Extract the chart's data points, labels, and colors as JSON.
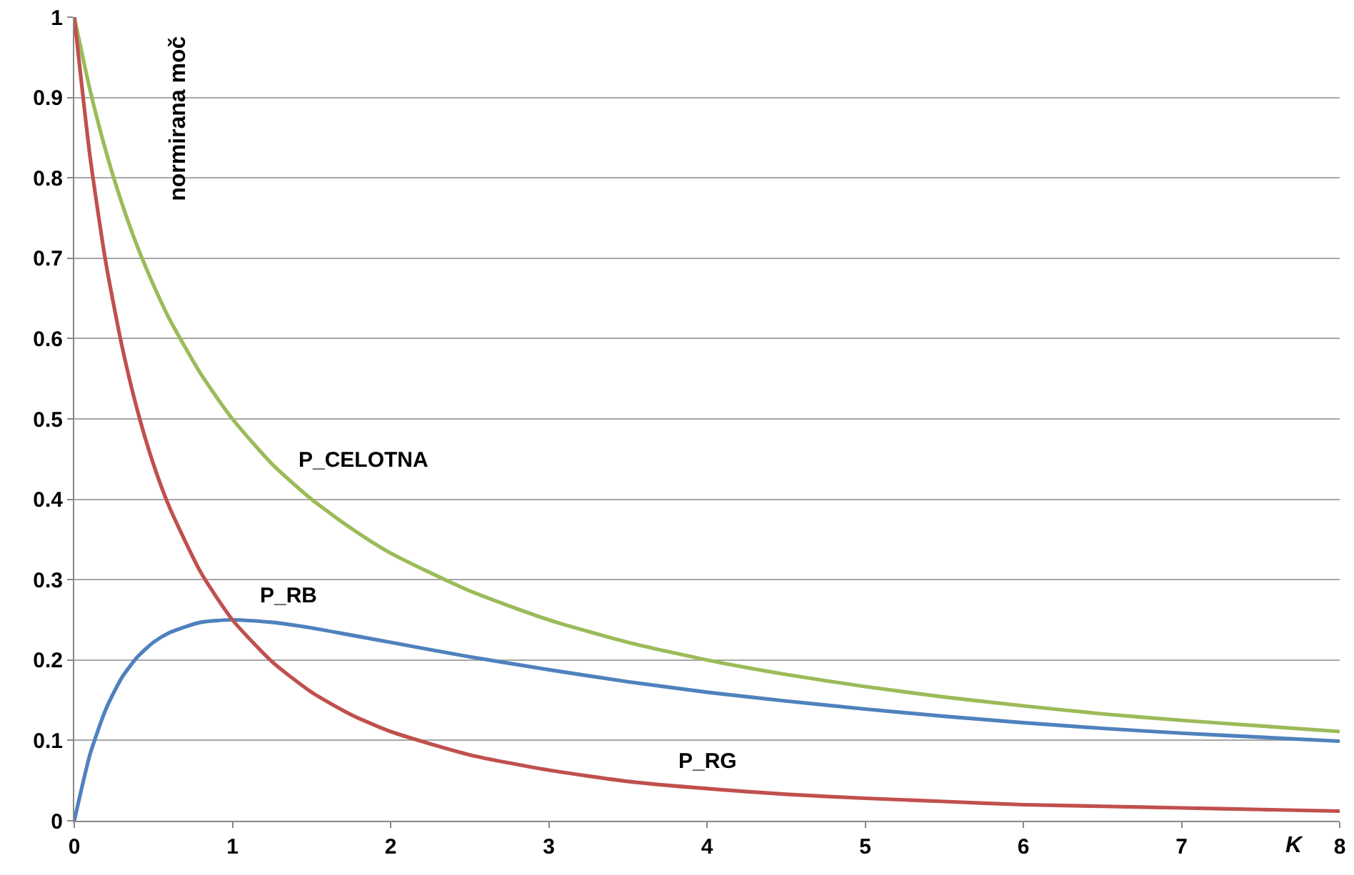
{
  "chart_data": {
    "type": "line",
    "ylabel": "normirana moč",
    "xlabel": "K",
    "x": [
      0,
      0.1,
      0.2,
      0.3,
      0.4,
      0.5,
      0.6,
      0.8,
      1,
      1.25,
      1.5,
      1.75,
      2,
      2.5,
      3,
      3.5,
      4,
      4.5,
      5,
      5.5,
      6,
      6.5,
      7,
      7.5,
      8
    ],
    "series": [
      {
        "color": "#9bbb59",
        "values": [
          1,
          0.909,
          0.833,
          0.769,
          0.714,
          0.667,
          0.625,
          0.556,
          0.5,
          0.444,
          0.4,
          0.364,
          0.333,
          0.286,
          0.25,
          0.222,
          0.2,
          0.182,
          0.167,
          0.154,
          0.143,
          0.133,
          0.125,
          0.118,
          0.111
        ]
      },
      {
        "color": "#4f81bd",
        "values": [
          0,
          0.083,
          0.139,
          0.178,
          0.204,
          0.222,
          0.234,
          0.247,
          0.25,
          0.247,
          0.24,
          0.231,
          0.222,
          0.204,
          0.188,
          0.173,
          0.16,
          0.149,
          0.139,
          0.13,
          0.122,
          0.115,
          0.109,
          0.104,
          0.099
        ]
      },
      {
        "color": "#c0504d",
        "values": [
          1,
          0.826,
          0.694,
          0.592,
          0.51,
          0.444,
          0.391,
          0.309,
          0.25,
          0.198,
          0.16,
          0.132,
          0.111,
          0.082,
          0.063,
          0.049,
          0.04,
          0.033,
          0.028,
          0.024,
          0.02,
          0.018,
          0.016,
          0.014,
          0.012
        ]
      }
    ],
    "annotations": [
      {
        "text": "P_CELOTNA",
        "x": 1.4,
        "y": 0.417
      },
      {
        "text": "P_RB",
        "x": 1.16,
        "y": 0.248
      },
      {
        "text": "P_RG",
        "x": 3.8,
        "y": 0.043
      }
    ],
    "xlim": [
      0,
      8
    ],
    "xticks": [
      0,
      1,
      2,
      3,
      4,
      5,
      6,
      7,
      8
    ],
    "ylim": [
      0,
      1
    ],
    "yticks": [
      0,
      0.1,
      0.2,
      0.3,
      0.4,
      0.5,
      0.6,
      0.7,
      0.8,
      0.9,
      1
    ],
    "grid": "y",
    "marker": "none",
    "line_style": "solid"
  }
}
